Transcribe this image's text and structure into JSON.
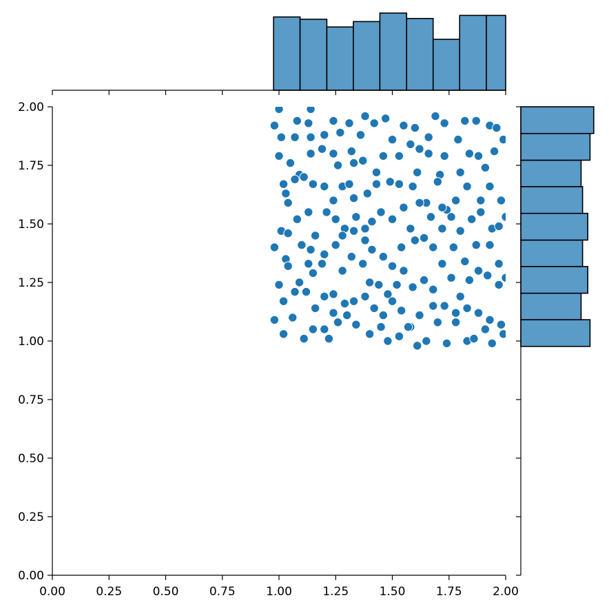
{
  "chart_data": {
    "type": "scatter",
    "kind": "jointplot",
    "title": "",
    "xlabel": "",
    "ylabel": "",
    "xlim": [
      0,
      2
    ],
    "ylim": [
      0,
      2
    ],
    "grid": false,
    "colors": {
      "points": "#1f77b4",
      "point_edge": "#ffffff",
      "hist_fill": "#5a9bc8",
      "hist_edge": "#000000"
    },
    "x_ticks": [
      0,
      0.25,
      0.5,
      0.75,
      1.0,
      1.25,
      1.5,
      1.75,
      2.0
    ],
    "y_ticks": [
      0,
      0.25,
      0.5,
      0.75,
      1.0,
      1.25,
      1.5,
      1.75,
      2.0
    ],
    "x_tick_labels": [
      "0.00",
      "0.25",
      "0.50",
      "0.75",
      "1.00",
      "1.25",
      "1.50",
      "1.75",
      "2.00"
    ],
    "y_tick_labels": [
      "0.00",
      "0.25",
      "0.50",
      "0.75",
      "1.00",
      "1.25",
      "1.50",
      "1.75",
      "2.00"
    ],
    "marginal_x": {
      "bin_edges": [
        0.976,
        1.093,
        1.211,
        1.328,
        1.445,
        1.563,
        1.68,
        1.797,
        1.915,
        2.032
      ],
      "relative_heights": [
        0.95,
        0.92,
        0.82,
        0.89,
        1.0,
        0.93,
        0.66,
        0.97,
        0.97
      ]
    },
    "marginal_y": {
      "bin_edges": [
        0.977,
        1.091,
        1.204,
        1.318,
        1.431,
        1.545,
        1.659,
        1.772,
        1.886,
        2.0
      ],
      "relative_heights": [
        0.93,
        0.81,
        0.9,
        0.83,
        0.9,
        0.83,
        0.81,
        0.93,
        0.98
      ]
    },
    "points": [
      [
        0.98,
        1.92
      ],
      [
        1.0,
        1.99
      ],
      [
        1.08,
        1.94
      ],
      [
        1.13,
        1.93
      ],
      [
        1.14,
        1.99
      ],
      [
        1.01,
        1.87
      ],
      [
        1.07,
        1.87
      ],
      [
        1.14,
        1.87
      ],
      [
        1.2,
        1.88
      ],
      [
        1.24,
        1.94
      ],
      [
        1.27,
        1.89
      ],
      [
        1.31,
        1.93
      ],
      [
        1.36,
        1.88
      ],
      [
        1.38,
        1.96
      ],
      [
        1.42,
        1.93
      ],
      [
        1.47,
        1.95
      ],
      [
        1.5,
        1.86
      ],
      [
        1.55,
        1.92
      ],
      [
        1.6,
        1.91
      ],
      [
        1.66,
        1.87
      ],
      [
        1.69,
        1.96
      ],
      [
        1.73,
        1.93
      ],
      [
        1.79,
        1.86
      ],
      [
        1.82,
        1.94
      ],
      [
        1.87,
        1.94
      ],
      [
        1.93,
        1.92
      ],
      [
        1.96,
        1.91
      ],
      [
        1.99,
        1.86
      ],
      [
        1.0,
        1.79
      ],
      [
        1.05,
        1.76
      ],
      [
        1.09,
        1.71
      ],
      [
        1.14,
        1.8
      ],
      [
        1.19,
        1.82
      ],
      [
        1.24,
        1.8
      ],
      [
        1.26,
        1.75
      ],
      [
        1.32,
        1.81
      ],
      [
        1.33,
        1.76
      ],
      [
        1.37,
        1.77
      ],
      [
        1.43,
        1.72
      ],
      [
        1.46,
        1.79
      ],
      [
        1.53,
        1.79
      ],
      [
        1.58,
        1.84
      ],
      [
        1.62,
        1.82
      ],
      [
        1.66,
        1.8
      ],
      [
        1.71,
        1.71
      ],
      [
        1.73,
        1.79
      ],
      [
        1.8,
        1.72
      ],
      [
        1.84,
        1.8
      ],
      [
        1.88,
        1.79
      ],
      [
        1.91,
        1.74
      ],
      [
        1.95,
        1.81
      ],
      [
        1.02,
        1.67
      ],
      [
        1.03,
        1.63
      ],
      [
        1.07,
        1.69
      ],
      [
        1.11,
        1.7
      ],
      [
        1.15,
        1.67
      ],
      [
        1.2,
        1.66
      ],
      [
        1.24,
        1.6
      ],
      [
        1.28,
        1.66
      ],
      [
        1.31,
        1.67
      ],
      [
        1.33,
        1.61
      ],
      [
        1.39,
        1.63
      ],
      [
        1.43,
        1.67
      ],
      [
        1.49,
        1.68
      ],
      [
        1.53,
        1.67
      ],
      [
        1.59,
        1.66
      ],
      [
        1.61,
        1.72
      ],
      [
        1.65,
        1.59
      ],
      [
        1.7,
        1.68
      ],
      [
        1.74,
        1.56
      ],
      [
        1.78,
        1.6
      ],
      [
        1.83,
        1.66
      ],
      [
        1.89,
        1.6
      ],
      [
        1.93,
        1.66
      ],
      [
        1.98,
        1.6
      ],
      [
        1.04,
        1.59
      ],
      [
        1.08,
        1.52
      ],
      [
        1.13,
        1.55
      ],
      [
        1.16,
        1.45
      ],
      [
        1.21,
        1.55
      ],
      [
        1.25,
        1.52
      ],
      [
        1.29,
        1.48
      ],
      [
        1.34,
        1.53
      ],
      [
        1.38,
        1.48
      ],
      [
        1.41,
        1.51
      ],
      [
        1.45,
        1.55
      ],
      [
        1.5,
        1.52
      ],
      [
        1.55,
        1.57
      ],
      [
        1.58,
        1.48
      ],
      [
        1.62,
        1.59
      ],
      [
        1.67,
        1.53
      ],
      [
        1.72,
        1.57
      ],
      [
        1.76,
        1.53
      ],
      [
        1.8,
        1.47
      ],
      [
        1.85,
        1.52
      ],
      [
        1.89,
        1.55
      ],
      [
        1.94,
        1.48
      ],
      [
        1.97,
        1.49
      ],
      [
        2.0,
        1.53
      ],
      [
        1.01,
        1.47
      ],
      [
        1.04,
        1.46
      ],
      [
        1.1,
        1.41
      ],
      [
        1.14,
        1.39
      ],
      [
        1.2,
        1.37
      ],
      [
        1.25,
        1.41
      ],
      [
        1.28,
        1.45
      ],
      [
        1.33,
        1.47
      ],
      [
        1.38,
        1.43
      ],
      [
        1.41,
        1.39
      ],
      [
        1.46,
        1.36
      ],
      [
        1.5,
        1.32
      ],
      [
        1.54,
        1.4
      ],
      [
        1.6,
        1.43
      ],
      [
        1.64,
        1.44
      ],
      [
        1.68,
        1.4
      ],
      [
        1.72,
        1.48
      ],
      [
        1.77,
        1.4
      ],
      [
        1.82,
        1.34
      ],
      [
        1.87,
        1.41
      ],
      [
        1.93,
        1.41
      ],
      [
        1.97,
        1.33
      ],
      [
        0.98,
        1.4
      ],
      [
        1.03,
        1.35
      ],
      [
        1.04,
        1.32
      ],
      [
        1.09,
        1.25
      ],
      [
        1.13,
        1.33
      ],
      [
        1.15,
        1.29
      ],
      [
        1.19,
        1.33
      ],
      [
        1.24,
        1.2
      ],
      [
        1.28,
        1.3
      ],
      [
        1.32,
        1.36
      ],
      [
        1.37,
        1.33
      ],
      [
        1.4,
        1.25
      ],
      [
        1.44,
        1.24
      ],
      [
        1.48,
        1.2
      ],
      [
        1.52,
        1.24
      ],
      [
        1.55,
        1.3
      ],
      [
        1.59,
        1.23
      ],
      [
        1.64,
        1.26
      ],
      [
        1.68,
        1.22
      ],
      [
        1.72,
        1.33
      ],
      [
        1.76,
        1.27
      ],
      [
        1.8,
        1.19
      ],
      [
        1.84,
        1.26
      ],
      [
        1.88,
        1.3
      ],
      [
        1.92,
        1.28
      ],
      [
        1.97,
        1.24
      ],
      [
        2.0,
        1.27
      ],
      [
        1.0,
        1.24
      ],
      [
        1.02,
        1.17
      ],
      [
        1.07,
        1.21
      ],
      [
        1.12,
        1.21
      ],
      [
        1.16,
        1.14
      ],
      [
        1.2,
        1.19
      ],
      [
        1.24,
        1.12
      ],
      [
        1.29,
        1.16
      ],
      [
        1.33,
        1.17
      ],
      [
        1.38,
        1.19
      ],
      [
        1.42,
        1.14
      ],
      [
        1.46,
        1.11
      ],
      [
        1.5,
        1.17
      ],
      [
        1.54,
        1.13
      ],
      [
        1.58,
        1.06
      ],
      [
        1.62,
        1.11
      ],
      [
        1.68,
        1.15
      ],
      [
        1.73,
        1.15
      ],
      [
        1.78,
        1.12
      ],
      [
        1.83,
        1.14
      ],
      [
        1.88,
        1.12
      ],
      [
        1.93,
        1.09
      ],
      [
        1.98,
        1.07
      ],
      [
        0.98,
        1.09
      ],
      [
        1.02,
        1.03
      ],
      [
        1.06,
        1.1
      ],
      [
        1.11,
        1.01
      ],
      [
        1.15,
        1.05
      ],
      [
        1.2,
        1.05
      ],
      [
        1.22,
        1.01
      ],
      [
        1.26,
        1.08
      ],
      [
        1.3,
        1.11
      ],
      [
        1.34,
        1.07
      ],
      [
        1.4,
        1.03
      ],
      [
        1.45,
        1.06
      ],
      [
        1.48,
        1.0
      ],
      [
        1.53,
        1.02
      ],
      [
        1.57,
        1.06
      ],
      [
        1.61,
        0.98
      ],
      [
        1.65,
        1.0
      ],
      [
        1.7,
        1.08
      ],
      [
        1.74,
        0.99
      ],
      [
        1.78,
        1.08
      ],
      [
        1.83,
        1.0
      ],
      [
        1.86,
        1.01
      ],
      [
        1.91,
        1.05
      ],
      [
        1.94,
        0.99
      ],
      [
        1.99,
        1.03
      ]
    ]
  }
}
